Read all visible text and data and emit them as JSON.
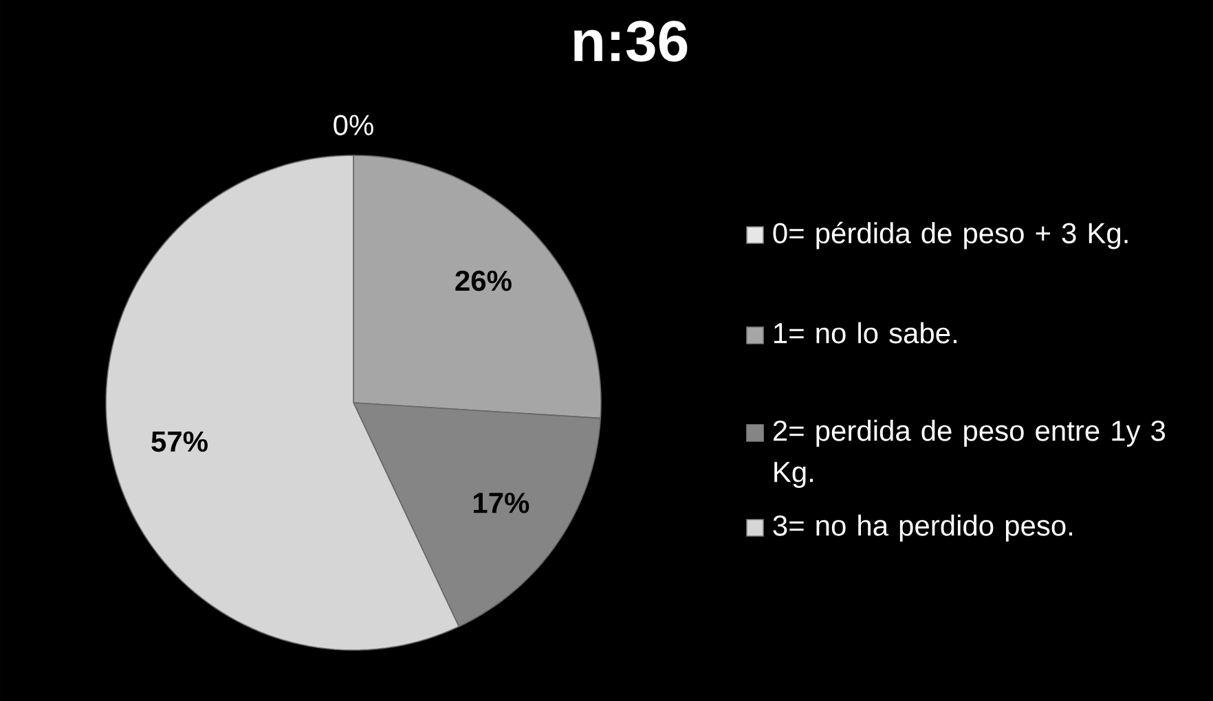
{
  "chart_data": {
    "type": "pie",
    "title": "n:36",
    "categories": [
      "0= pérdida de peso + 3 Kg.",
      "1= no lo sabe.",
      "2= perdida de peso entre 1y 3 Kg.",
      "3= no ha perdido peso."
    ],
    "values": [
      0,
      26,
      17,
      57
    ],
    "value_labels": [
      "0%",
      "26%",
      "17%",
      "57%"
    ],
    "colors": [
      "#e6e6e6",
      "#a6a6a6",
      "#858585",
      "#d6d6d6"
    ],
    "legend": "right"
  }
}
